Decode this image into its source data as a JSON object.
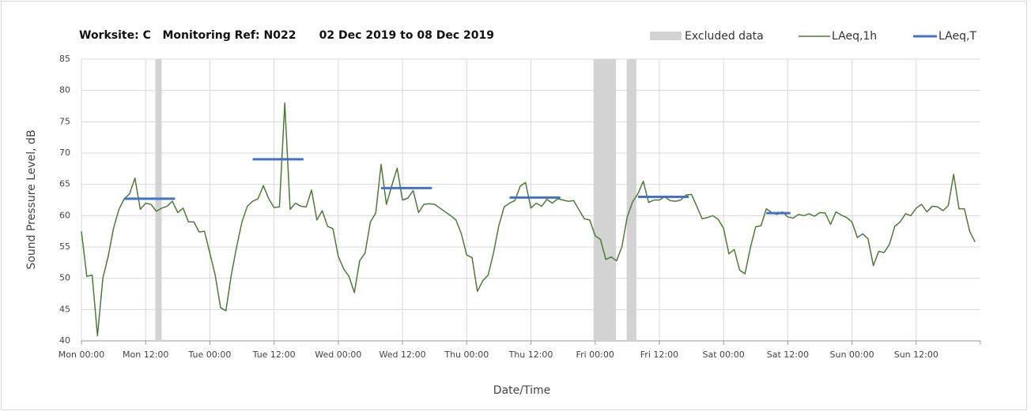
{
  "chart_data": {
    "type": "line",
    "title": "Worksite: C   Monitoring Ref: N022      02 Dec 2019 to 08 Dec 2019",
    "xlabel": "Date/Time",
    "ylabel": "Sound Pressure Level, dB",
    "xlim": [
      0,
      168
    ],
    "xticks": [
      {
        "value": 0,
        "label": "Mon 00:00"
      },
      {
        "value": 12,
        "label": "Mon 12:00"
      },
      {
        "value": 24,
        "label": "Tue 00:00"
      },
      {
        "value": 36,
        "label": "Tue 12:00"
      },
      {
        "value": 48,
        "label": "Wed 00:00"
      },
      {
        "value": 60,
        "label": "Wed 12:00"
      },
      {
        "value": 72,
        "label": "Thu 00:00"
      },
      {
        "value": 84,
        "label": "Thu 12:00"
      },
      {
        "value": 96,
        "label": "Fri 00:00"
      },
      {
        "value": 108,
        "label": "Fri 12:00"
      },
      {
        "value": 120,
        "label": "Sat 00:00"
      },
      {
        "value": 132,
        "label": "Sat 12:00"
      },
      {
        "value": 144,
        "label": "Sun 00:00"
      },
      {
        "value": 156,
        "label": "Sun 12:00"
      }
    ],
    "ylim": [
      40,
      85
    ],
    "yticks": [
      40,
      45,
      50,
      55,
      60,
      65,
      70,
      75,
      80,
      85
    ],
    "grid": true,
    "excluded_data": {
      "name": "Excluded data",
      "color": "#d3d3d3",
      "ranges": [
        [
          13.8,
          15
        ],
        [
          95.7,
          99.9
        ],
        [
          101.9,
          103.7
        ]
      ]
    },
    "series": [
      {
        "name": "LAeq,1h",
        "color": "#4f7a38",
        "x": [
          0,
          1,
          2,
          3,
          4,
          5,
          6,
          7,
          8,
          9,
          10,
          11,
          12,
          13,
          14,
          15,
          16,
          17,
          18,
          19,
          20,
          21,
          22,
          23,
          24,
          25,
          26,
          27,
          28,
          29,
          30,
          31,
          32,
          33,
          34,
          35,
          36,
          37,
          38,
          39,
          40,
          41,
          42,
          43,
          44,
          45,
          46,
          47,
          48,
          49,
          50,
          51,
          52,
          53,
          54,
          55,
          56,
          57,
          58,
          59,
          60,
          61,
          62,
          63,
          64,
          65,
          66,
          67,
          68,
          69,
          70,
          71,
          72,
          73,
          74,
          75,
          76,
          77,
          78,
          79,
          80,
          81,
          82,
          83,
          84,
          85,
          86,
          87,
          88,
          89,
          90,
          91,
          92,
          93,
          94,
          95,
          96,
          97,
          98,
          99,
          100,
          101,
          102,
          103,
          104,
          105,
          106,
          107,
          108,
          109,
          110,
          111,
          112,
          113,
          114,
          115,
          116,
          117,
          118,
          119,
          120,
          121,
          122,
          123,
          124,
          125,
          126,
          127,
          128,
          129,
          130,
          131,
          132,
          133,
          134,
          135,
          136,
          137,
          138,
          139,
          140,
          141,
          142,
          143,
          144,
          145,
          146,
          147,
          148,
          149,
          150,
          151,
          152,
          153,
          154,
          155,
          156,
          157,
          158,
          159,
          160,
          161,
          162,
          163,
          164,
          165,
          166,
          167
        ],
        "values": [
          57.5,
          50.3,
          50.5,
          40.8,
          50,
          53.5,
          58,
          61,
          62.7,
          63.5,
          66,
          61,
          62,
          61.8,
          60.7,
          61.2,
          61.5,
          62.3,
          60.5,
          61.2,
          59,
          59,
          57.4,
          57.5,
          54,
          50.5,
          45.3,
          44.8,
          50.5,
          55,
          59,
          61.5,
          62.3,
          62.7,
          64.8,
          62.7,
          61.3,
          61.4,
          78,
          61,
          62,
          61.5,
          61.4,
          64.1,
          59.3,
          60.8,
          58.3,
          57.9,
          53.5,
          51.5,
          50.3,
          47.7,
          52.8,
          54,
          59,
          60.4,
          68.2,
          61.8,
          64.8,
          67.6,
          62.5,
          62.8,
          64,
          60.5,
          61.8,
          61.9,
          61.8,
          61.2,
          60.6,
          60,
          59.3,
          57.1,
          53.7,
          53.3,
          47.9,
          49.6,
          50.5,
          54,
          58.4,
          61.4,
          62,
          62.4,
          64.7,
          65.3,
          61.2,
          62,
          61.5,
          62.6,
          62,
          62.7,
          62.5,
          62.3,
          62.4,
          60.9,
          59.5,
          59.3,
          56.8,
          56.2,
          53,
          53.4,
          52.8,
          55,
          59.8,
          62.2,
          63.5,
          65.5,
          62.1,
          62.5,
          62.5,
          63,
          62.4,
          62.3,
          62.5,
          63.3,
          63.4,
          61.5,
          59.5,
          59.7,
          60,
          59.4,
          58,
          53.9,
          54.6,
          51.3,
          50.7,
          54.8,
          58.2,
          58.4,
          61.1,
          60.5,
          60.2,
          60.6,
          59.8,
          59.6,
          60.2,
          60,
          60.3,
          59.9,
          60.5,
          60.4,
          58.6,
          60.6,
          60.1,
          59.7,
          59,
          56.5,
          57.1,
          56.3,
          52,
          54.3,
          54.1,
          55.4,
          58.3,
          59,
          60.3,
          60,
          61.2,
          61.8,
          60.6,
          61.5,
          61.4,
          60.8,
          61.6,
          66.6,
          61.1,
          61.1,
          57.5,
          55.8
        ]
      },
      {
        "name": "LAeq,T",
        "color": "#4472c4",
        "x_start": [
          8,
          32,
          56,
          80,
          104,
          128
        ],
        "x_end": [
          17.5,
          41.5,
          65.5,
          89.5,
          113.5,
          132.5
        ],
        "values": [
          62.7,
          69.0,
          64.4,
          62.9,
          63.0,
          60.4
        ]
      }
    ]
  }
}
